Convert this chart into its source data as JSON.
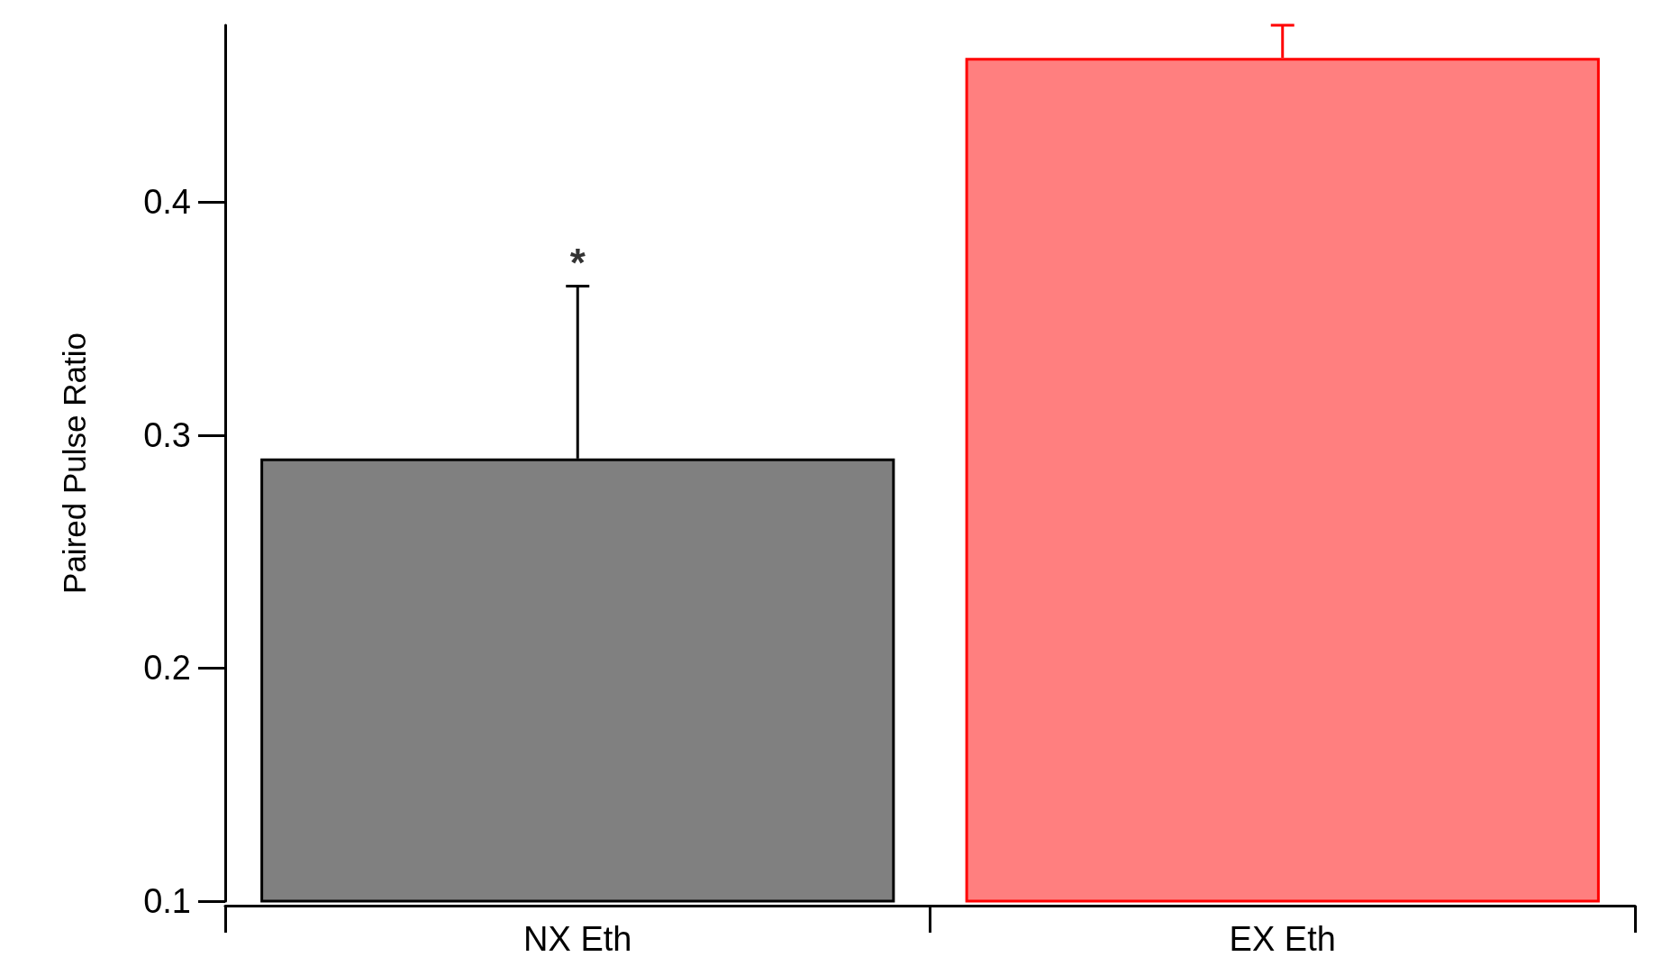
{
  "chart_data": {
    "type": "bar",
    "ylabel": "Paired Pulse Ratio",
    "categories": [
      "NX Eth",
      "EX Eth"
    ],
    "values": [
      0.29,
      0.462
    ],
    "colors": [
      "#808080",
      "#ff7f7f"
    ],
    "errors": [
      [
        0.29,
        0.364
      ],
      [
        0.462,
        0.476
      ]
    ],
    "ylim": [
      0.1,
      0.476
    ],
    "yticks": [
      0.1,
      0.2,
      0.3,
      0.4
    ],
    "annotations": [
      {
        "text": "*",
        "x": "NX Eth",
        "y": 0.364
      }
    ]
  }
}
